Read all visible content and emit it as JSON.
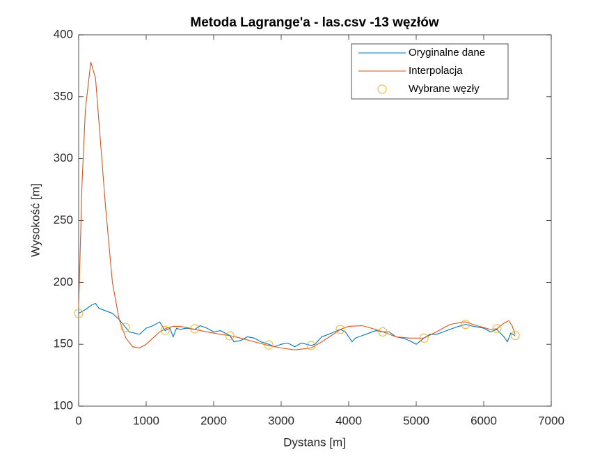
{
  "chart_data": {
    "type": "line",
    "title": "Metoda Lagrange'a - las.csv -13 węzłów",
    "xlabel": "Dystans [m]",
    "ylabel": "Wysokość [m]",
    "xlim": [
      0,
      7000
    ],
    "xticks": [
      0,
      1000,
      2000,
      3000,
      4000,
      5000,
      6000,
      7000
    ],
    "ylim": [
      100,
      400
    ],
    "yticks": [
      100,
      150,
      200,
      250,
      300,
      350,
      400
    ],
    "grid": false,
    "legend": "northeast",
    "series": [
      {
        "name": "Oryginalne dane",
        "color": "#0072bd",
        "style": "line",
        "x": [
          0,
          100,
          200,
          250,
          300,
          400,
          500,
          600,
          690,
          750,
          900,
          1000,
          1100,
          1200,
          1280,
          1350,
          1400,
          1450,
          1500,
          1600,
          1720,
          1800,
          1900,
          2000,
          2100,
          2240,
          2300,
          2400,
          2500,
          2600,
          2700,
          2815,
          2900,
          3000,
          3100,
          3200,
          3300,
          3445,
          3500,
          3600,
          3700,
          3875,
          3950,
          4000,
          4050,
          4100,
          4200,
          4300,
          4400,
          4505,
          4600,
          4700,
          4800,
          4900,
          5000,
          5115,
          5200,
          5300,
          5400,
          5500,
          5600,
          5730,
          5800,
          5900,
          6000,
          6100,
          6195,
          6300,
          6350,
          6400,
          6465
        ],
        "values": [
          175,
          178,
          182,
          183,
          179,
          177,
          175,
          170,
          164,
          160,
          158,
          163,
          165,
          168,
          161,
          163,
          156,
          163,
          162,
          163,
          162,
          165,
          163,
          160,
          161,
          157,
          152,
          153,
          156,
          155,
          152,
          150,
          148,
          150,
          151,
          148,
          151,
          149,
          150,
          156,
          158,
          162,
          160,
          156,
          152,
          155,
          157,
          159,
          161,
          160,
          160,
          156,
          155,
          153,
          150,
          155,
          158,
          158,
          160,
          162,
          164,
          166,
          165,
          164,
          163,
          160,
          162,
          156,
          152,
          159,
          157
        ]
      },
      {
        "name": "Interpolacja",
        "color": "#d95319",
        "style": "line",
        "x": [
          0,
          50,
          100,
          180,
          250,
          300,
          400,
          500,
          600,
          700,
          800,
          900,
          1000,
          1100,
          1200,
          1300,
          1400,
          1500,
          1600,
          1720,
          1900,
          2100,
          2240,
          2400,
          2600,
          2815,
          3000,
          3200,
          3445,
          3600,
          3800,
          3875,
          4000,
          4200,
          4400,
          4505,
          4700,
          4900,
          5115,
          5300,
          5500,
          5700,
          5730,
          5900,
          6100,
          6195,
          6300,
          6370,
          6420,
          6465
        ],
        "values": [
          180,
          280,
          340,
          378,
          365,
          330,
          260,
          200,
          170,
          155,
          148,
          147,
          150,
          155,
          160,
          163,
          164.5,
          164.5,
          163.5,
          162,
          160,
          158,
          157,
          155,
          152,
          149,
          147,
          145.5,
          147,
          152,
          159,
          162,
          164.5,
          165,
          162,
          160,
          156,
          155,
          155,
          160,
          166,
          168,
          168,
          165,
          162,
          162.5,
          167,
          169,
          165,
          158
        ]
      },
      {
        "name": "Wybrane węzły",
        "color": "#edb120",
        "style": "markers",
        "x": [
          0,
          690,
          1280,
          1720,
          2240,
          2815,
          3445,
          3875,
          4505,
          5115,
          5730,
          6195,
          6465
        ],
        "values": [
          175,
          163.6,
          161.3,
          162.5,
          156.8,
          149.5,
          149,
          162,
          160,
          155,
          166,
          162.5,
          157
        ]
      }
    ]
  }
}
